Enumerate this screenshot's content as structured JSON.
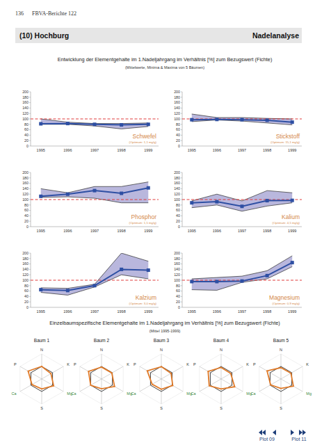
{
  "page": {
    "page_number": "136",
    "header": "FBVA-Berichte 122",
    "section": "(10) Hochburg",
    "topic": "Nadelanalyse",
    "title1": "Entwicklung der Elementgehalte im 1.Nadeljahrgang im Verhältnis [%] zum Bezugswert (Fichte)",
    "subtitle1": "(Mittelwerte, Minima & Maxima von 5 Bäumen)",
    "title2": "Einzelbaumspezifische Elementgehalte im 1.Nadeljahrgang im Verhältnis [%] zum Bezugswert (Fichte)",
    "subtitle2": "(Mittel 1995-1999)",
    "nav_prev": "Plot 09",
    "nav_next": "Plot 11"
  },
  "chart_data": [
    {
      "type": "line",
      "title": "Schwefel",
      "subtitle": "(Optimum: 1,1 mg/g)",
      "categories": [
        "1995",
        "1996",
        "1997",
        "1998",
        "1999"
      ],
      "values": [
        82,
        83,
        80,
        78,
        80
      ],
      "min": [
        80,
        80,
        74,
        63,
        72
      ],
      "max": [
        100,
        88,
        83,
        83,
        85
      ],
      "reference": 100,
      "ylim": [
        0,
        200
      ],
      "yticks": [
        0,
        20,
        40,
        60,
        80,
        100,
        120,
        140,
        160,
        180,
        200
      ],
      "color": "#2e4fa3",
      "marker": "square"
    },
    {
      "type": "line",
      "title": "Stickstoff",
      "subtitle": "(Optimum: 15,1 mg/g)",
      "categories": [
        "1995",
        "1996",
        "1997",
        "1998",
        "1999"
      ],
      "values": [
        97,
        98,
        97,
        95,
        88
      ],
      "min": [
        90,
        96,
        92,
        85,
        78
      ],
      "max": [
        118,
        105,
        105,
        102,
        100
      ],
      "reference": 100,
      "ylim": [
        0,
        200
      ],
      "yticks": [
        0,
        20,
        40,
        60,
        80,
        100,
        120,
        140,
        160,
        180,
        200
      ],
      "color": "#2e4fa3",
      "marker": "square"
    },
    {
      "type": "line",
      "title": "Phosphor",
      "subtitle": "(Optimum: 1,5 mg/g)",
      "categories": [
        "1995",
        "1996",
        "1997",
        "1998",
        "1999"
      ],
      "values": [
        112,
        120,
        133,
        123,
        143
      ],
      "min": [
        108,
        110,
        105,
        88,
        88
      ],
      "max": [
        140,
        125,
        148,
        148,
        165
      ],
      "reference": 100,
      "ylim": [
        0,
        200
      ],
      "yticks": [
        0,
        20,
        40,
        60,
        80,
        100,
        120,
        140,
        160,
        180,
        200
      ],
      "color": "#2e4fa3",
      "marker": "square"
    },
    {
      "type": "line",
      "title": "Kalium",
      "subtitle": "(Optimum: 4,5 mg/g)",
      "categories": [
        "1995",
        "1996",
        "1997",
        "1998",
        "1999"
      ],
      "values": [
        88,
        92,
        75,
        96,
        97
      ],
      "min": [
        70,
        80,
        57,
        76,
        88
      ],
      "max": [
        95,
        120,
        95,
        133,
        125
      ],
      "reference": 100,
      "ylim": [
        0,
        200
      ],
      "yticks": [
        0,
        20,
        40,
        60,
        80,
        100,
        120,
        140,
        160,
        180,
        200
      ],
      "color": "#2e4fa3",
      "marker": "square"
    },
    {
      "type": "line",
      "title": "Kalzium",
      "subtitle": "(Optimum: 3,0 mg/g)",
      "categories": [
        "1995",
        "1996",
        "1997",
        "1998",
        "1999"
      ],
      "values": [
        65,
        62,
        80,
        140,
        137
      ],
      "min": [
        55,
        45,
        75,
        120,
        105
      ],
      "max": [
        72,
        70,
        85,
        200,
        170
      ],
      "reference": 100,
      "ylim": [
        0,
        200
      ],
      "yticks": [
        0,
        20,
        40,
        60,
        80,
        100,
        120,
        140,
        160,
        180,
        200
      ],
      "color": "#2e4fa3",
      "marker": "square"
    },
    {
      "type": "line",
      "title": "Magnesium",
      "subtitle": "(Optimum: 0,9 mg/g)",
      "categories": [
        "1995",
        "1996",
        "1997",
        "1998",
        "1999"
      ],
      "values": [
        95,
        95,
        97,
        117,
        165
      ],
      "min": [
        65,
        63,
        92,
        105,
        150
      ],
      "max": [
        105,
        110,
        115,
        135,
        190
      ],
      "reference": 100,
      "ylim": [
        0,
        200
      ],
      "yticks": [
        0,
        20,
        40,
        60,
        80,
        100,
        120,
        140,
        160,
        180,
        200
      ],
      "color": "#2e4fa3",
      "marker": "square"
    },
    {
      "type": "radar",
      "title": "Baum 1",
      "categories": [
        "N",
        "K",
        "Mg",
        "S",
        "Ca",
        "P"
      ],
      "values": [
        100,
        85,
        110,
        80,
        90,
        125
      ],
      "reference": 100,
      "ylim": [
        0,
        200
      ],
      "color": "#e07b2a",
      "tick_labels": false
    },
    {
      "type": "radar",
      "title": "Baum 2",
      "categories": [
        "N",
        "K",
        "Mg",
        "S",
        "Ca",
        "P"
      ],
      "values": [
        95,
        95,
        120,
        78,
        100,
        120
      ],
      "reference": 100,
      "ylim": [
        0,
        200
      ],
      "color": "#e07b2a",
      "tick_labels": false
    },
    {
      "type": "radar",
      "title": "Baum 3",
      "categories": [
        "N",
        "K",
        "Mg",
        "S",
        "Ca",
        "P"
      ],
      "values": [
        98,
        90,
        105,
        82,
        85,
        130
      ],
      "reference": 100,
      "ylim": [
        0,
        200
      ],
      "color": "#e07b2a",
      "tick_labels": false
    },
    {
      "type": "radar",
      "title": "Baum 4",
      "categories": [
        "N",
        "K",
        "Mg",
        "S",
        "Ca",
        "P"
      ],
      "values": [
        92,
        88,
        125,
        80,
        110,
        120
      ],
      "reference": 100,
      "ylim": [
        0,
        200
      ],
      "color": "#e07b2a",
      "tick_labels": false
    },
    {
      "type": "radar",
      "title": "Baum 5",
      "categories": [
        "N",
        "K",
        "Mg",
        "S",
        "Ca",
        "P"
      ],
      "values": [
        90,
        92,
        115,
        76,
        95,
        128
      ],
      "reference": 100,
      "ylim": [
        0,
        200
      ],
      "color": "#e07b2a",
      "tick_labels": false
    }
  ]
}
